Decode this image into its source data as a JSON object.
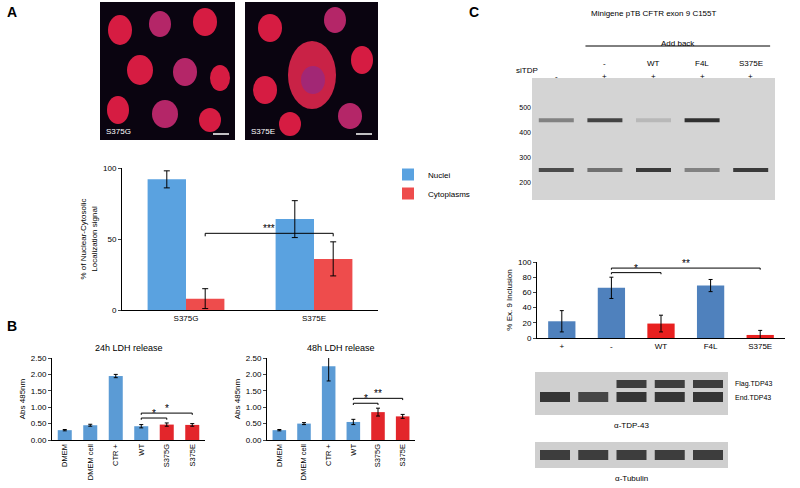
{
  "figure": {
    "panel_labels": [
      "A",
      "B",
      "C"
    ],
    "images": [
      {
        "label": "S375G"
      },
      {
        "label": "S375E"
      }
    ],
    "gel": {
      "title": "Minigene pTB CFTR exon 9 C155T",
      "group_label": "Add back",
      "row_label": "siTDP",
      "ylim": [
        130,
        620
      ],
      "yticks": [
        200,
        300,
        400,
        500
      ],
      "lanes": [
        {
          "siTDP": "-",
          "bands": [
            {
              "bp": 450,
              "intensity": 0.45
            },
            {
              "bp": 250,
              "intensity": 0.75
            }
          ]
        },
        {
          "siTDP": "+",
          "add_back": "-",
          "bands": [
            {
              "bp": 450,
              "intensity": 0.8
            },
            {
              "bp": 250,
              "intensity": 0.55
            }
          ]
        },
        {
          "siTDP": "+",
          "add_back": "WT",
          "bands": [
            {
              "bp": 450,
              "intensity": 0.15
            },
            {
              "bp": 250,
              "intensity": 0.85
            }
          ]
        },
        {
          "siTDP": "+",
          "add_back": "F4L",
          "bands": [
            {
              "bp": 450,
              "intensity": 0.9
            },
            {
              "bp": 250,
              "intensity": 0.45
            }
          ]
        },
        {
          "siTDP": "+",
          "add_back": "S375E",
          "bands": [
            {
              "bp": 250,
              "intensity": 0.85
            }
          ]
        }
      ]
    },
    "blots": [
      {
        "label": "α-TDP-43",
        "bands": [
          "Flag.TDP43",
          "End.TDP43"
        ]
      },
      {
        "label": "α-Tubulin"
      }
    ]
  },
  "chart_data": [
    {
      "type": "bar",
      "ylabel": "% of Nuclear-Cytosolic\nLocalization signal",
      "categories": [
        "S375G",
        "S375E"
      ],
      "series": [
        {
          "name": "Nuclei",
          "color": "#5aa2e0",
          "values": [
            92,
            64
          ],
          "errors": [
            6,
            13
          ]
        },
        {
          "name": "Cytoplasms",
          "color": "#ee4c4c",
          "values": [
            8,
            36
          ],
          "errors": [
            7,
            12
          ]
        }
      ],
      "ylim": [
        0,
        100
      ],
      "yticks": [
        0,
        50,
        100
      ],
      "grid": false,
      "legend": "right",
      "significance": [
        {
          "from": [
            0,
            1
          ],
          "to": [
            1,
            1
          ],
          "label": "***"
        }
      ]
    },
    {
      "type": "bar",
      "title": "24h LDH release",
      "ylabel": "Abs 485nm",
      "categories": [
        "DMEM",
        "DMEM cell",
        "CTR +",
        "WT",
        "S375G",
        "S375E"
      ],
      "values": [
        0.3,
        0.45,
        1.95,
        0.42,
        0.47,
        0.46
      ],
      "errors": [
        0.02,
        0.03,
        0.05,
        0.05,
        0.05,
        0.04
      ],
      "colors": [
        "#5b9bd5",
        "#5b9bd5",
        "#5b9bd5",
        "#5b9bd5",
        "#e3262b",
        "#e3262b"
      ],
      "ylim": [
        0,
        2.5
      ],
      "yticks": [
        {
          "value": 0,
          "label": "0.00"
        },
        {
          "value": 0.5,
          "label": "0.50"
        },
        {
          "value": 1,
          "label": "1.00"
        },
        {
          "value": 1.5,
          "label": "1.50"
        },
        {
          "value": 2,
          "label": "2.00"
        },
        {
          "value": 2.5,
          "label": "2.50"
        }
      ],
      "grid": false,
      "significance": [
        {
          "from": [
            3,
            0
          ],
          "to": [
            4,
            0
          ],
          "label": "*"
        },
        {
          "from": [
            3,
            0
          ],
          "to": [
            5,
            0
          ],
          "label": "*"
        }
      ]
    },
    {
      "type": "bar",
      "title": "48h LDH release",
      "ylabel": "Abs 485nm",
      "categories": [
        "DMEM",
        "DMEM cell",
        "CTR +",
        "WT",
        "S375G",
        "S375E"
      ],
      "values": [
        0.3,
        0.5,
        2.25,
        0.55,
        0.85,
        0.72
      ],
      "errors": [
        0.02,
        0.03,
        0.45,
        0.08,
        0.12,
        0.06
      ],
      "colors": [
        "#5b9bd5",
        "#5b9bd5",
        "#5b9bd5",
        "#5b9bd5",
        "#e3262b",
        "#e3262b"
      ],
      "ylim": [
        0,
        2.5
      ],
      "yticks": [
        {
          "value": 0,
          "label": "0.00"
        },
        {
          "value": 0.5,
          "label": "0.50"
        },
        {
          "value": 1,
          "label": "1.00"
        },
        {
          "value": 1.5,
          "label": "1.50"
        },
        {
          "value": 2,
          "label": "2.00"
        },
        {
          "value": 2.5,
          "label": "2.50"
        }
      ],
      "grid": false,
      "significance": [
        {
          "from": [
            3,
            0
          ],
          "to": [
            4,
            0
          ],
          "label": "*"
        },
        {
          "from": [
            3,
            0
          ],
          "to": [
            5,
            0
          ],
          "label": "**"
        }
      ]
    },
    {
      "type": "bar",
      "ylabel": "% Ex. 9 Inclusion",
      "categories": [
        "+",
        "-",
        "WT",
        "F4L",
        "S375E"
      ],
      "values": [
        22,
        66,
        19,
        69,
        4
      ],
      "errors": [
        14,
        14,
        11,
        8,
        6
      ],
      "colors": [
        "#4f81bd",
        "#4f81bd",
        "#e8201f",
        "#4f81bd",
        "#e8201f"
      ],
      "ylim": [
        0,
        100
      ],
      "yticks": [
        0,
        20,
        40,
        60,
        80,
        100
      ],
      "grid": false,
      "significance": [
        {
          "from": [
            1,
            0
          ],
          "to": [
            2,
            0
          ],
          "label": "*"
        },
        {
          "from": [
            1,
            0
          ],
          "to": [
            4,
            0
          ],
          "label": "**"
        }
      ]
    }
  ]
}
